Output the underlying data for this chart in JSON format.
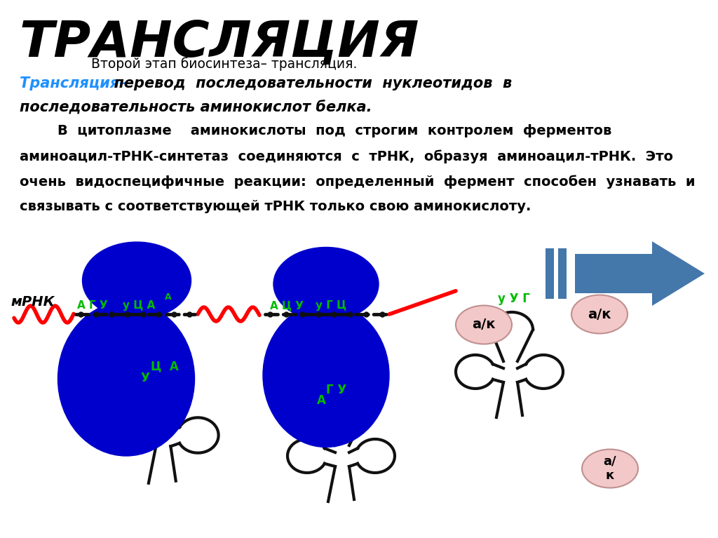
{
  "title": "ТРАНСЛЯЦИЯ",
  "subtitle": "Второй этап биосинтеза– трансляция.",
  "line2_cyan": "Трансляция–",
  "line2_black": "  перевод  последовательности  нуклеотидов  в",
  "line3": "последовательность аминокислот белка.",
  "para1": "        В  цитоплазме    аминокислоты  под  строгим  контролем  ферментов",
  "para2": "аминоацил-тРНК-синтетаз  соединяются  с  тРНК,  образуя  аминоацил-тРНК.  Это",
  "para3": "очень  видоспецифичные  реакции:  определенный  фермент  способен  узнавать  и",
  "para4": "связывать с соответствующей тРНК только свою аминокислоту.",
  "mrna_label": "мРНК",
  "codon1": "А Г У",
  "codon2": "у Ц А",
  "codon_a": "А",
  "codon3": "А Ц У",
  "codon4": "у Г Ц",
  "anticodon1_line1": "Ц  А",
  "anticodon1_line2": "У",
  "anticodon2_line1": "Г У",
  "anticodon2_line2": "А",
  "anticodon3": "у У Г",
  "ak_label1": "а/к",
  "ak_label2": "а/к",
  "ak_label3": "а/\nк",
  "bg_color": "#ffffff",
  "title_color": "#000000",
  "cyan_color": "#1e90ff",
  "green_color": "#00bb00",
  "ribosome_dark": "#0000aa",
  "ribosome_mid": "#0000cc",
  "mrna_color": "#ff0000",
  "ak_fill": "#f2c8c8",
  "ak_edge": "#c09090",
  "arrow_color": "#4477aa",
  "trna_color": "#111111",
  "dot_color": "#111111"
}
